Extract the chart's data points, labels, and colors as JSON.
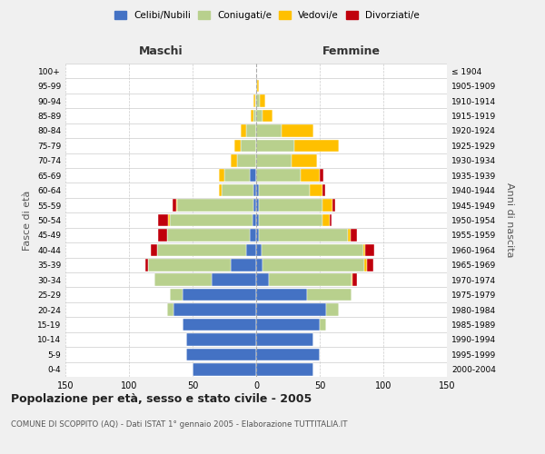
{
  "age_groups": [
    "0-4",
    "5-9",
    "10-14",
    "15-19",
    "20-24",
    "25-29",
    "30-34",
    "35-39",
    "40-44",
    "45-49",
    "50-54",
    "55-59",
    "60-64",
    "65-69",
    "70-74",
    "75-79",
    "80-84",
    "85-89",
    "90-94",
    "95-99",
    "100+"
  ],
  "birth_years": [
    "2000-2004",
    "1995-1999",
    "1990-1994",
    "1985-1989",
    "1980-1984",
    "1975-1979",
    "1970-1974",
    "1965-1969",
    "1960-1964",
    "1955-1959",
    "1950-1954",
    "1945-1949",
    "1940-1944",
    "1935-1939",
    "1930-1934",
    "1925-1929",
    "1920-1924",
    "1915-1919",
    "1910-1914",
    "1905-1909",
    "≤ 1904"
  ],
  "males": {
    "celibe": [
      50,
      55,
      55,
      58,
      65,
      58,
      35,
      20,
      8,
      5,
      3,
      2,
      2,
      5,
      0,
      0,
      0,
      0,
      0,
      0,
      0
    ],
    "coniugato": [
      0,
      0,
      0,
      0,
      5,
      10,
      45,
      65,
      70,
      65,
      65,
      60,
      25,
      20,
      15,
      12,
      8,
      2,
      1,
      0,
      0
    ],
    "vedovo": [
      0,
      0,
      0,
      0,
      0,
      0,
      0,
      0,
      0,
      0,
      1,
      1,
      2,
      4,
      5,
      5,
      4,
      2,
      1,
      0,
      0
    ],
    "divorziato": [
      0,
      0,
      0,
      0,
      0,
      0,
      0,
      2,
      5,
      7,
      8,
      3,
      0,
      0,
      0,
      0,
      0,
      0,
      0,
      0,
      0
    ]
  },
  "females": {
    "nubile": [
      45,
      50,
      45,
      50,
      55,
      40,
      10,
      5,
      4,
      2,
      2,
      2,
      2,
      0,
      0,
      0,
      0,
      0,
      0,
      0,
      0
    ],
    "coniugata": [
      0,
      0,
      0,
      5,
      10,
      35,
      65,
      80,
      80,
      70,
      50,
      50,
      40,
      35,
      28,
      30,
      20,
      5,
      3,
      1,
      0
    ],
    "vedova": [
      0,
      0,
      0,
      0,
      0,
      0,
      1,
      2,
      2,
      2,
      6,
      8,
      10,
      15,
      20,
      35,
      25,
      8,
      4,
      1,
      0
    ],
    "divorziata": [
      0,
      0,
      0,
      0,
      0,
      0,
      3,
      5,
      7,
      5,
      1,
      2,
      2,
      3,
      0,
      0,
      0,
      0,
      0,
      0,
      0
    ]
  },
  "colors": {
    "celibe": "#4472c4",
    "coniugato": "#b8d08d",
    "vedovo": "#ffc000",
    "divorziato": "#c0000c"
  },
  "legend_labels": [
    "Celibi/Nubili",
    "Coniugati/e",
    "Vedovi/e",
    "Divorziati/e"
  ],
  "title": "Popolazione per età, sesso e stato civile - 2005",
  "subtitle": "COMUNE DI SCOPPITO (AQ) - Dati ISTAT 1° gennaio 2005 - Elaborazione TUTTITALIA.IT",
  "xlabel_left": "Maschi",
  "xlabel_right": "Femmine",
  "ylabel_left": "Fasce di età",
  "ylabel_right": "Anni di nascita",
  "xlim": 150,
  "bg_color": "#f0f0f0",
  "plot_bg": "#ffffff",
  "grid_color": "#cccccc"
}
